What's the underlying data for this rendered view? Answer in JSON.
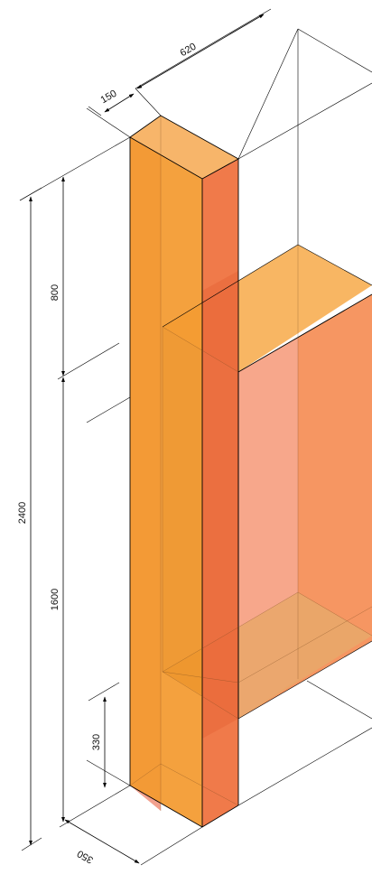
{
  "dimensions": {
    "width_top": "620",
    "depth_top": "150",
    "upper_height": "800",
    "total_height": "2400",
    "lower_height": "1600",
    "base_height": "330",
    "base_depth": "350"
  },
  "colors": {
    "front_face": "#f39a2f",
    "side_face": "#ef7340",
    "top_face": "#f7b56a",
    "top_corner": "#f0907a",
    "cabinet_side": "#f7a890",
    "cabinet_front": "#f5905a",
    "cabinet_top": "#f7b056",
    "shelf": "#e9a76a"
  }
}
